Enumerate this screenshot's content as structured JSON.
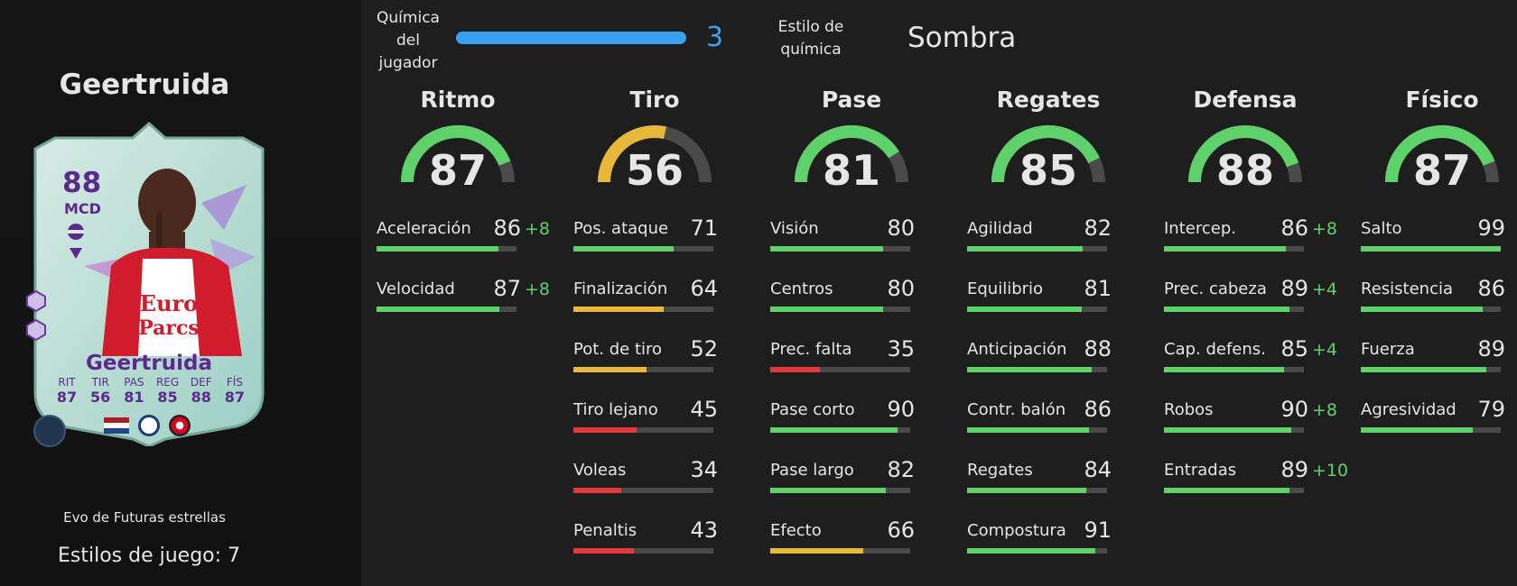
{
  "player": {
    "name": "Geertruida",
    "card": {
      "rating": "88",
      "position": "MCD",
      "name": "Geertruida",
      "stats": [
        {
          "label": "RIT",
          "value": "87"
        },
        {
          "label": "TIR",
          "value": "56"
        },
        {
          "label": "PAS",
          "value": "81"
        },
        {
          "label": "REG",
          "value": "85"
        },
        {
          "label": "DEF",
          "value": "88"
        },
        {
          "label": "FÍS",
          "value": "87"
        }
      ],
      "card_color": "#b9ddd3",
      "accent_color": "#5b2a8c"
    },
    "evo_label": "Evo de Futuras estrellas",
    "playstyles_label": "Estilos de juego: 7"
  },
  "chemistry": {
    "label_lines": [
      "Química",
      "del",
      "jugador"
    ],
    "value": "3",
    "fill_fraction": 1.0,
    "color": "#3aa0f0"
  },
  "chem_style": {
    "label_lines": [
      "Estilo de",
      "química"
    ],
    "value": "Sombra"
  },
  "colors": {
    "green": "#5fd16a",
    "yellow": "#e8b83a",
    "red": "#e03a3a",
    "track": "#4a4a4a"
  },
  "categories": [
    {
      "title": "Ritmo",
      "value": 87,
      "stats": [
        {
          "name": "Aceleración",
          "value": 86,
          "bonus": "+8"
        },
        {
          "name": "Velocidad",
          "value": 87,
          "bonus": "+8"
        }
      ]
    },
    {
      "title": "Tiro",
      "value": 56,
      "stats": [
        {
          "name": "Pos. ataque",
          "value": 71,
          "bonus": ""
        },
        {
          "name": "Finalización",
          "value": 64,
          "bonus": ""
        },
        {
          "name": "Pot. de tiro",
          "value": 52,
          "bonus": ""
        },
        {
          "name": "Tiro lejano",
          "value": 45,
          "bonus": ""
        },
        {
          "name": "Voleas",
          "value": 34,
          "bonus": ""
        },
        {
          "name": "Penaltis",
          "value": 43,
          "bonus": ""
        }
      ]
    },
    {
      "title": "Pase",
      "value": 81,
      "stats": [
        {
          "name": "Visión",
          "value": 80,
          "bonus": ""
        },
        {
          "name": "Centros",
          "value": 80,
          "bonus": ""
        },
        {
          "name": "Prec. falta",
          "value": 35,
          "bonus": ""
        },
        {
          "name": "Pase corto",
          "value": 90,
          "bonus": ""
        },
        {
          "name": "Pase largo",
          "value": 82,
          "bonus": ""
        },
        {
          "name": "Efecto",
          "value": 66,
          "bonus": ""
        }
      ]
    },
    {
      "title": "Regates",
      "value": 85,
      "stats": [
        {
          "name": "Agilidad",
          "value": 82,
          "bonus": ""
        },
        {
          "name": "Equilibrio",
          "value": 81,
          "bonus": ""
        },
        {
          "name": "Anticipación",
          "value": 88,
          "bonus": ""
        },
        {
          "name": "Contr. balón",
          "value": 86,
          "bonus": ""
        },
        {
          "name": "Regates",
          "value": 84,
          "bonus": ""
        },
        {
          "name": "Compostura",
          "value": 91,
          "bonus": ""
        }
      ]
    },
    {
      "title": "Defensa",
      "value": 88,
      "stats": [
        {
          "name": "Intercep.",
          "value": 86,
          "bonus": "+8"
        },
        {
          "name": "Prec. cabeza",
          "value": 89,
          "bonus": "+4"
        },
        {
          "name": "Cap. defens.",
          "value": 85,
          "bonus": "+4"
        },
        {
          "name": "Robos",
          "value": 90,
          "bonus": "+8"
        },
        {
          "name": "Entradas",
          "value": 89,
          "bonus": "+10"
        }
      ]
    },
    {
      "title": "Físico",
      "value": 87,
      "stats": [
        {
          "name": "Salto",
          "value": 99,
          "bonus": ""
        },
        {
          "name": "Resistencia",
          "value": 86,
          "bonus": ""
        },
        {
          "name": "Fuerza",
          "value": 89,
          "bonus": ""
        },
        {
          "name": "Agresividad",
          "value": 79,
          "bonus": ""
        }
      ]
    }
  ]
}
